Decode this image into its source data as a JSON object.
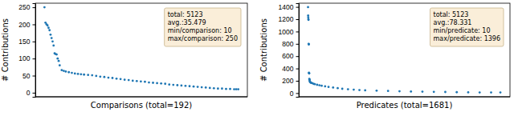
{
  "chart_data": [
    {
      "type": "scatter",
      "x_label": "Comparisons (total=192)",
      "y_label": "# Contributions",
      "annotations": [
        "total: 5123",
        "avg.:35.479",
        "min/comparison: 10",
        "max/comparison: 250"
      ],
      "x": [
        1,
        2,
        3,
        4,
        5,
        6,
        7,
        8,
        9,
        10,
        11,
        12,
        13,
        14,
        15,
        16,
        18,
        20,
        22,
        25,
        28,
        31,
        34,
        37,
        40,
        44,
        48,
        52,
        56,
        60,
        64,
        68,
        72,
        76,
        80,
        84,
        88,
        92,
        96,
        100,
        104,
        108,
        112,
        116,
        120,
        124,
        128,
        132,
        136,
        140,
        144,
        148,
        152,
        156,
        160,
        164,
        168,
        172,
        176,
        180,
        184,
        188,
        190,
        192
      ],
      "values": [
        250,
        205,
        200,
        197,
        190,
        183,
        170,
        160,
        150,
        138,
        115,
        113,
        112,
        100,
        93,
        80,
        66,
        64,
        62,
        60,
        58,
        56,
        55,
        54,
        53,
        52,
        51,
        49,
        47,
        46,
        44,
        43,
        41,
        40,
        38,
        37,
        35,
        34,
        33,
        32,
        30,
        29,
        28,
        27,
        26,
        24,
        23,
        22,
        21,
        20,
        19,
        18,
        17,
        16,
        15,
        14,
        13,
        12,
        12,
        11,
        11,
        10,
        10,
        10
      ],
      "color": "#1f77b4",
      "marker": "o",
      "xlim": [
        -8,
        201
      ],
      "ylim": [
        -12,
        262
      ],
      "yticks": [
        0,
        50,
        100,
        150,
        200,
        250
      ],
      "tick_labels": "y"
    },
    {
      "type": "scatter",
      "x_label": "Predicates (total=1681)",
      "y_label": "# Contributions",
      "annotations": [
        "total: 5123",
        "avg.:78.331",
        "min/predicate: 10",
        "max/predicate: 1396"
      ],
      "x": [
        1,
        2,
        3,
        4,
        5,
        6,
        7,
        8,
        9,
        10,
        11,
        12,
        13,
        14,
        15,
        18,
        22,
        26,
        30,
        40,
        50,
        60,
        80,
        100,
        120,
        150,
        180,
        220,
        260,
        300,
        350,
        400,
        450,
        500,
        600,
        700,
        800,
        900,
        1000,
        1100,
        1200,
        1300,
        1400,
        1500,
        1600,
        1681
      ],
      "values": [
        1396,
        1260,
        1230,
        1200,
        1190,
        800,
        795,
        790,
        330,
        325,
        320,
        230,
        225,
        215,
        200,
        185,
        175,
        170,
        165,
        160,
        150,
        145,
        135,
        128,
        120,
        110,
        100,
        90,
        80,
        70,
        62,
        56,
        50,
        45,
        40,
        35,
        30,
        26,
        23,
        20,
        18,
        15,
        13,
        11,
        10,
        10
      ],
      "color": "#1f77b4",
      "marker": "o",
      "xlim": [
        -80,
        1765
      ],
      "ylim": [
        -60,
        1460
      ],
      "yticks": [
        0,
        200,
        400,
        600,
        800,
        1000,
        1200,
        1400
      ],
      "tick_labels": "y"
    }
  ]
}
